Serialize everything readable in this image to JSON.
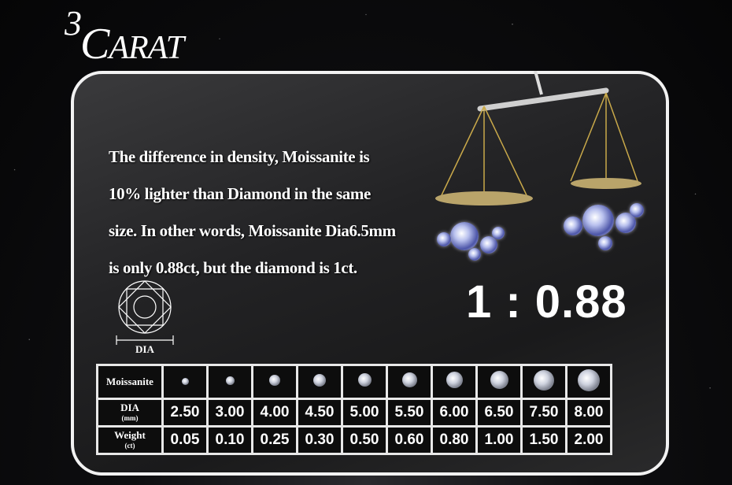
{
  "title": {
    "number": "3",
    "word_initial": "C",
    "word_rest": "ARAT"
  },
  "description": [
    "The difference in density, Moissanite is",
    "10% lighter than Diamond in the same",
    "size. In other words, Moissanite Dia6.5mm",
    "is only 0.88ct, but the diamond is 1ct."
  ],
  "ratio": "1 : 0.88",
  "dia_label": "DIA",
  "table": {
    "row_labels": {
      "moissanite": "Moissanite",
      "dia": "DIA",
      "dia_unit": "(mm)",
      "weight": "Weight",
      "weight_unit": "(ct)"
    },
    "dia_mm": [
      "2.50",
      "3.00",
      "4.00",
      "4.50",
      "5.00",
      "5.50",
      "6.00",
      "6.50",
      "7.50",
      "8.00"
    ],
    "weight_ct": [
      "0.05",
      "0.10",
      "0.25",
      "0.30",
      "0.50",
      "0.60",
      "0.80",
      "1.00",
      "1.50",
      "2.00"
    ]
  },
  "colors": {
    "background": "#0e0e10",
    "panel_border": "#f2f2f2",
    "text": "#ffffff"
  }
}
